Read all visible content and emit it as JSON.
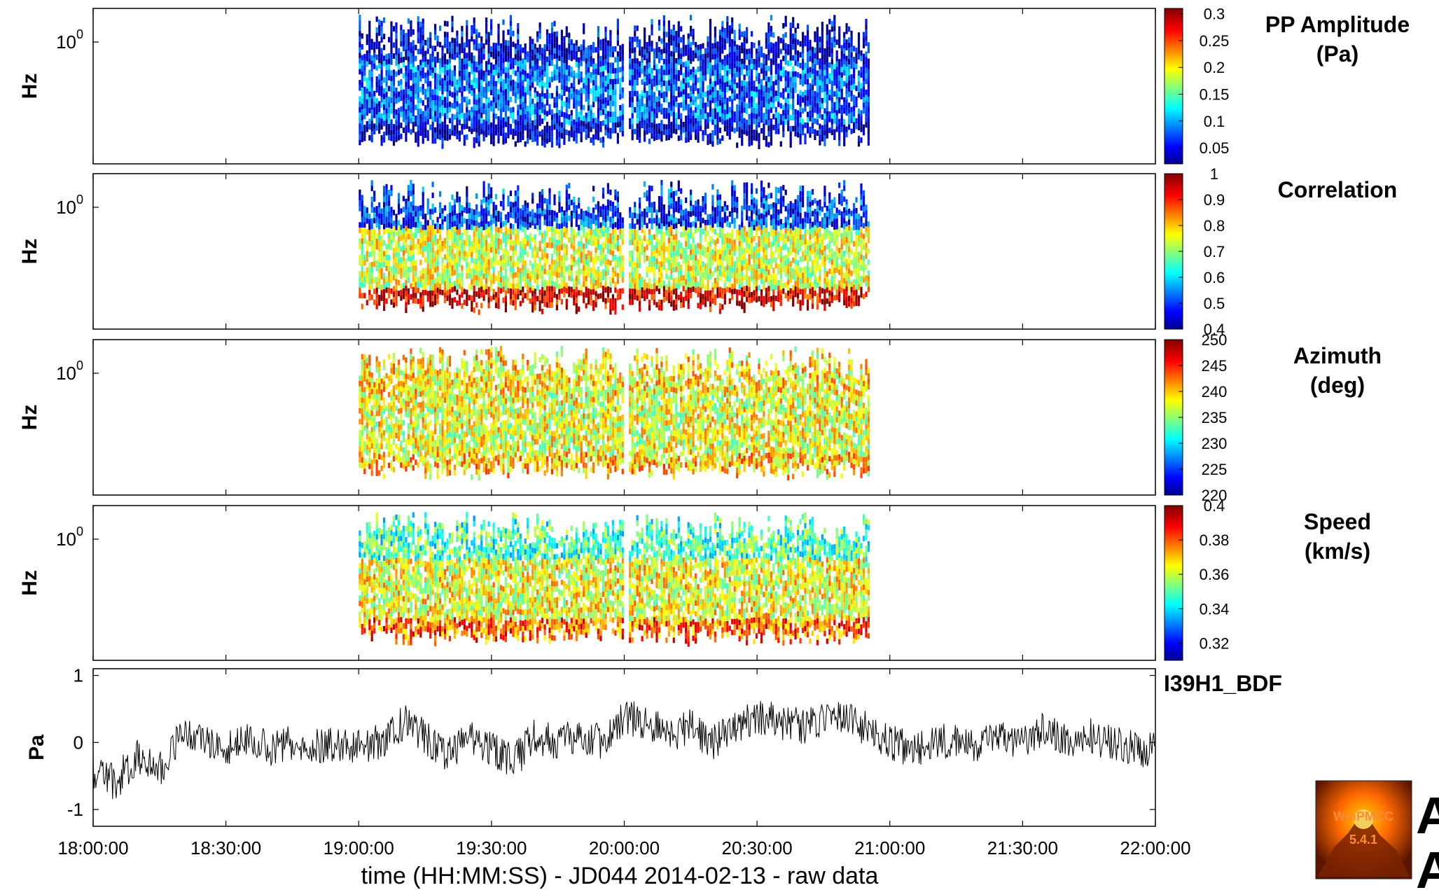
{
  "chart_data": {
    "type": "heatmap",
    "figure": {
      "x_axis_label": "time (HH:MM:SS) - JD044 2014-02-13 - raw data",
      "x_ticks": [
        "18:00:00",
        "18:30:00",
        "19:00:00",
        "19:30:00",
        "20:00:00",
        "20:30:00",
        "21:00:00",
        "21:30:00",
        "22:00:00"
      ],
      "xlim": [
        "18:00:00",
        "22:00:00"
      ],
      "logo_text": "WinPMCC 5.4.1",
      "cutoff_letters": [
        "A",
        "A"
      ]
    },
    "panels": [
      {
        "id": "pp_amplitude",
        "type": "heatmap",
        "title": "PP Amplitude\n(Pa)",
        "title_lines": [
          "PP Amplitude",
          "(Pa)"
        ],
        "ylabel": "Hz",
        "ytick": "10",
        "ytick_exp": "0",
        "yscale": "log",
        "colormap": "jet",
        "clim": [
          0.02,
          0.31
        ],
        "colorbar_ticks": [
          "0.3",
          "0.25",
          "0.2",
          "0.15",
          "0.1",
          "0.05"
        ],
        "colorbar_tick_values": [
          0.3,
          0.25,
          0.2,
          0.15,
          0.1,
          0.05
        ],
        "activity_windows": [
          [
            "19:00:00",
            "20:55:00"
          ]
        ],
        "gap_at": "20:00:00",
        "value_pattern": [
          {
            "band": "high",
            "value": 0.05
          },
          {
            "band": "mid",
            "value": 0.08
          },
          {
            "band": "low",
            "value": 0.04
          }
        ]
      },
      {
        "id": "correlation",
        "type": "heatmap",
        "title": "Correlation",
        "title_lines": [
          "Correlation"
        ],
        "ylabel": "Hz",
        "ytick": "10",
        "ytick_exp": "0",
        "yscale": "log",
        "colormap": "jet",
        "clim": [
          0.4,
          1.0
        ],
        "colorbar_ticks": [
          "1",
          "0.9",
          "0.8",
          "0.7",
          "0.6",
          "0.5",
          "0.4"
        ],
        "colorbar_tick_values": [
          1,
          0.9,
          0.8,
          0.7,
          0.6,
          0.5,
          0.4
        ],
        "activity_windows": [
          [
            "19:00:00",
            "20:55:00"
          ]
        ],
        "gap_at": "20:00:00",
        "value_pattern": [
          {
            "band": "high",
            "value": 0.5
          },
          {
            "band": "mid",
            "value": 0.75
          },
          {
            "band": "low",
            "value": 0.95
          }
        ]
      },
      {
        "id": "azimuth",
        "type": "heatmap",
        "title": "Azimuth\n(deg)",
        "title_lines": [
          "Azimuth",
          "(deg)"
        ],
        "ylabel": "Hz",
        "ytick": "10",
        "ytick_exp": "0",
        "yscale": "log",
        "colormap": "jet",
        "clim": [
          220,
          250
        ],
        "colorbar_ticks": [
          "250",
          "245",
          "240",
          "235",
          "230",
          "225",
          "220"
        ],
        "colorbar_tick_values": [
          250,
          245,
          240,
          235,
          230,
          225,
          220
        ],
        "activity_windows": [
          [
            "19:00:00",
            "20:55:00"
          ]
        ],
        "gap_at": "20:00:00",
        "value_pattern": [
          {
            "band": "high",
            "value": 239
          },
          {
            "band": "mid",
            "value": 238
          },
          {
            "band": "low",
            "value": 240
          }
        ]
      },
      {
        "id": "speed",
        "type": "heatmap",
        "title": "Speed\n(km/s)",
        "title_lines": [
          "Speed",
          "(km/s)"
        ],
        "ylabel": "Hz",
        "ytick": "10",
        "ytick_exp": "0",
        "yscale": "log",
        "colormap": "jet",
        "clim": [
          0.31,
          0.4
        ],
        "colorbar_ticks": [
          "0.4",
          "0.38",
          "0.36",
          "0.34",
          "0.32"
        ],
        "colorbar_tick_values": [
          0.4,
          0.38,
          0.36,
          0.34,
          0.32
        ],
        "activity_windows": [
          [
            "19:00:00",
            "20:55:00"
          ]
        ],
        "gap_at": "20:00:00",
        "value_pattern": [
          {
            "band": "high",
            "value": 0.35
          },
          {
            "band": "mid",
            "value": 0.365
          },
          {
            "band": "low",
            "value": 0.38
          }
        ]
      },
      {
        "id": "waveform",
        "type": "line",
        "title": "I39H1_BDF",
        "ylabel": "Pa",
        "yticks": [
          "1",
          "0",
          "-1"
        ],
        "ytick_values": [
          1,
          0,
          -1
        ],
        "ylim": [
          -1.25,
          1.1
        ],
        "x": [
          "18:00:00",
          "18:05:00",
          "18:10:00",
          "18:15:00",
          "18:20:00",
          "18:25:00",
          "18:30:00",
          "18:35:00",
          "18:40:00",
          "18:45:00",
          "18:50:00",
          "18:55:00",
          "19:00:00",
          "19:05:00",
          "19:10:00",
          "19:15:00",
          "19:20:00",
          "19:25:00",
          "19:30:00",
          "19:35:00",
          "19:40:00",
          "19:45:00",
          "19:50:00",
          "19:55:00",
          "20:00:00",
          "20:05:00",
          "20:10:00",
          "20:15:00",
          "20:20:00",
          "20:25:00",
          "20:30:00",
          "20:35:00",
          "20:40:00",
          "20:45:00",
          "20:50:00",
          "20:55:00",
          "21:00:00",
          "21:05:00",
          "21:10:00",
          "21:15:00",
          "21:20:00",
          "21:25:00",
          "21:30:00",
          "21:35:00",
          "21:40:00",
          "21:45:00",
          "21:50:00",
          "21:55:00",
          "22:00:00"
        ],
        "y": [
          -0.5,
          -0.6,
          -0.2,
          -0.4,
          0.1,
          0.0,
          -0.1,
          0.05,
          -0.1,
          0.0,
          -0.05,
          0.0,
          -0.05,
          0.0,
          0.3,
          0.1,
          -0.2,
          0.05,
          -0.1,
          -0.3,
          0.1,
          0.0,
          0.1,
          0.0,
          0.4,
          0.3,
          0.1,
          0.25,
          0.0,
          0.2,
          0.4,
          0.3,
          0.25,
          0.3,
          0.4,
          0.2,
          0.0,
          -0.1,
          0.0,
          0.05,
          -0.05,
          0.1,
          0.0,
          0.2,
          0.0,
          0.1,
          0.0,
          -0.1,
          -0.1
        ]
      }
    ]
  }
}
